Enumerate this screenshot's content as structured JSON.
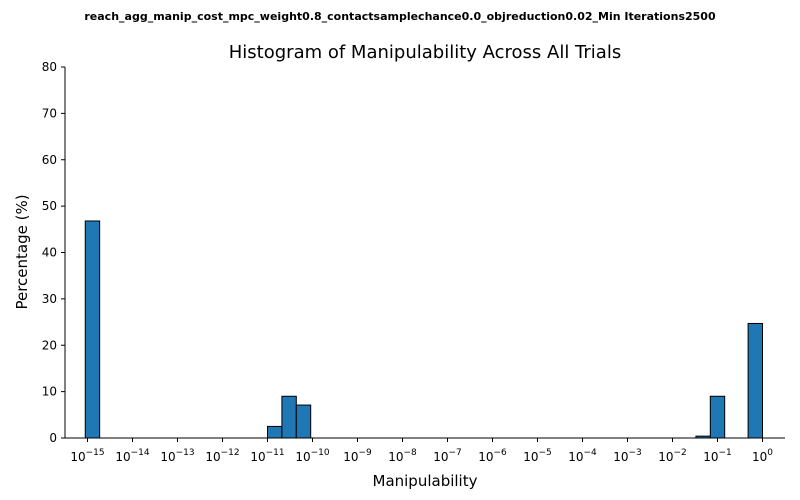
{
  "chart_data": {
    "type": "bar",
    "suptitle": "reach_agg_manip_cost_mpc_weight0.8_contactsamplechance0.0_objreduction0.02_Min Iterations2500",
    "title": "Histogram of Manipulability Across All Trials",
    "xlabel": "Manipulability",
    "ylabel": "Percentage (%)",
    "xscale": "log",
    "xlim": [
      -15.5,
      0.5
    ],
    "ylim": [
      0,
      80
    ],
    "x_tick_exponents": [
      -15,
      -14,
      -13,
      -12,
      -11,
      -10,
      -9,
      -8,
      -7,
      -6,
      -5,
      -4,
      -3,
      -2,
      -1,
      0
    ],
    "x_tick_base": "10",
    "x_tick_minus": "−",
    "y_ticks": [
      0,
      10,
      20,
      30,
      40,
      50,
      60,
      70,
      80
    ],
    "grid": false,
    "bar_color": "#1f77b4",
    "bar_edge_color": "#000000",
    "bars": [
      {
        "log10_lo": -15.05,
        "log10_hi": -14.73,
        "value": 46.8
      },
      {
        "log10_lo": -11.0,
        "log10_hi": -10.68,
        "value": 2.5
      },
      {
        "log10_lo": -10.68,
        "log10_hi": -10.36,
        "value": 9.0
      },
      {
        "log10_lo": -10.36,
        "log10_hi": -10.04,
        "value": 7.1
      },
      {
        "log10_lo": -1.48,
        "log10_hi": -1.16,
        "value": 0.4
      },
      {
        "log10_lo": -1.16,
        "log10_hi": -0.84,
        "value": 9.0
      },
      {
        "log10_lo": -0.32,
        "log10_hi": 0.0,
        "value": 24.7
      }
    ]
  }
}
